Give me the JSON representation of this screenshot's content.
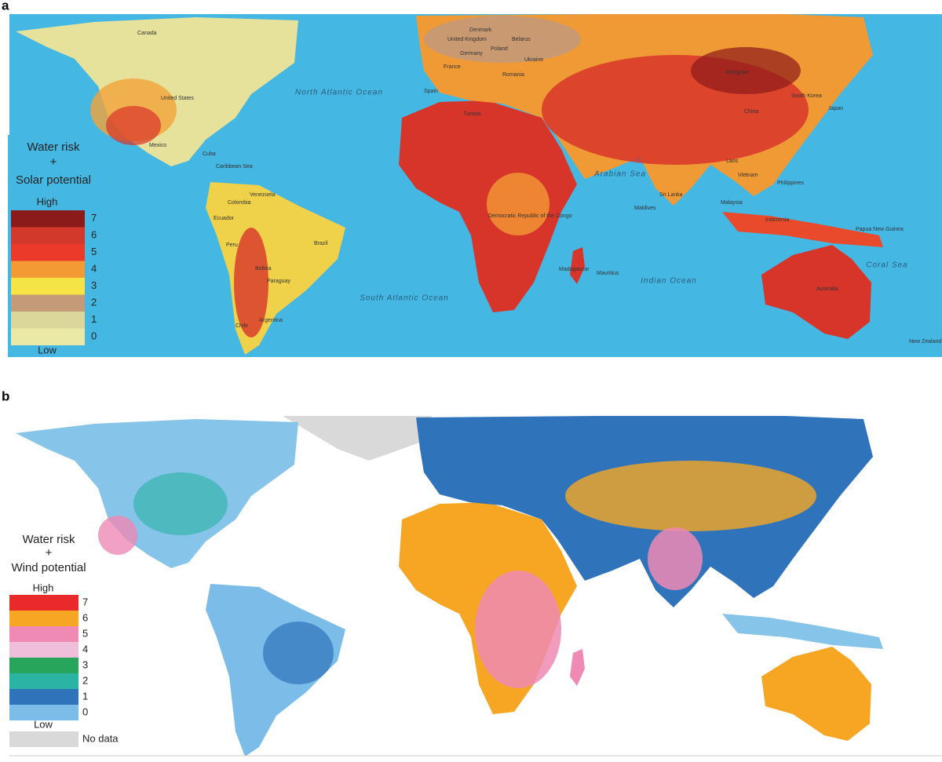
{
  "panels": [
    {
      "label": "a",
      "legend": {
        "title": [
          "Water risk",
          "+",
          "Solar potential"
        ],
        "high": "High",
        "low": "Low",
        "items": [
          {
            "label": 7,
            "color": "#8b1a1a"
          },
          {
            "label": 6,
            "color": "#d2392b"
          },
          {
            "label": 5,
            "color": "#ec3a2a"
          },
          {
            "label": 4,
            "color": "#f39a35"
          },
          {
            "label": 3,
            "color": "#f6e447"
          },
          {
            "label": 2,
            "color": "#c49a78"
          },
          {
            "label": 1,
            "color": "#dbd69a"
          },
          {
            "label": 0,
            "color": "#ebe9a6"
          }
        ]
      },
      "map_labels": [
        "Canada",
        "United States",
        "Mexico",
        "Cuba",
        "Caribbean Sea",
        "Venezuela",
        "Colombia",
        "Ecuador",
        "Peru",
        "Brazil",
        "Bolivia",
        "Paraguay",
        "Argentina",
        "Chile",
        "North Atlantic Ocean",
        "South Atlantic Ocean",
        "Indian Ocean",
        "Arabian Sea",
        "Coral Sea",
        "United Kingdom",
        "Denmark",
        "Belarus",
        "Poland",
        "Germany",
        "France",
        "Ukraine",
        "Romania",
        "Spain",
        "Tunisia",
        "Mongolia",
        "China",
        "Japan",
        "South Korea",
        "Laos",
        "Vietnam",
        "Philippines",
        "Malaysia",
        "Indonesia",
        "Papua New Guinea",
        "Sri Lanka",
        "Maldives",
        "Democratic Republic of the Congo",
        "Madagascar",
        "Mauritius",
        "Australia",
        "New Zealand"
      ]
    },
    {
      "label": "b",
      "legend": {
        "title": [
          "Water risk",
          "+",
          "Wind potential"
        ],
        "high": "High",
        "low": "Low",
        "items": [
          {
            "label": 7,
            "color": "#ea2a2a"
          },
          {
            "label": 6,
            "color": "#f6a623"
          },
          {
            "label": 5,
            "color": "#ee8ab4"
          },
          {
            "label": 4,
            "color": "#efbedb"
          },
          {
            "label": 3,
            "color": "#27a55a"
          },
          {
            "label": 2,
            "color": "#2bb3a4"
          },
          {
            "label": 1,
            "color": "#2f74bb"
          },
          {
            "label": 0,
            "color": "#7bbde8"
          }
        ],
        "no_data": {
          "label": "No data",
          "color": "#d9d9d9"
        }
      }
    }
  ]
}
